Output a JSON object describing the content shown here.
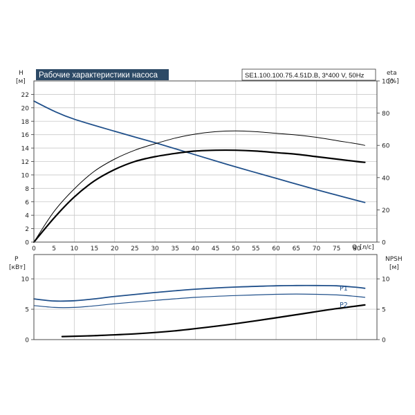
{
  "header": {
    "title": "Рабочие характеристики насоса",
    "model": "SE1.100.100.75.4.51D.B, 3*400 V, 50Hz"
  },
  "colors": {
    "blue": "#1f4f8a",
    "black": "#000000",
    "title_bg": "#2d4a66",
    "grid": "#c8c8c8"
  },
  "chart_data": [
    {
      "type": "line",
      "axes": {
        "y_left": {
          "label": "H",
          "unit": "[м]",
          "ticks": [
            "0",
            "2",
            "4",
            "6",
            "8",
            "10",
            "12",
            "14",
            "16",
            "18",
            "20",
            "22"
          ],
          "ylim": [
            0,
            24
          ]
        },
        "y_right": {
          "label": "eta",
          "unit": "[%]",
          "ticks": [
            "0",
            "20",
            "40",
            "60",
            "80",
            "100"
          ],
          "ylim": [
            0,
            100
          ]
        },
        "x": {
          "label": "Q",
          "unit": "[л/с]",
          "ticks": [
            "0",
            "5",
            "10",
            "15",
            "20",
            "25",
            "30",
            "35",
            "40",
            "45",
            "50",
            "55",
            "60",
            "65",
            "70",
            "75",
            "80"
          ],
          "xlim": [
            0,
            85
          ]
        }
      },
      "grid": true,
      "series": [
        {
          "id": "H",
          "axis": "left",
          "color": "#1f4f8a",
          "width": 1.8,
          "x": [
            0,
            5,
            10,
            20,
            30,
            40,
            50,
            60,
            70,
            75,
            80,
            82
          ],
          "y": [
            21.0,
            19.5,
            18.3,
            16.5,
            14.8,
            13.0,
            11.2,
            9.5,
            7.8,
            7.0,
            6.2,
            5.9
          ]
        },
        {
          "id": "eta_thin",
          "axis": "right",
          "color": "#000000",
          "width": 1.0,
          "x": [
            0,
            5,
            10,
            15,
            20,
            25,
            30,
            35,
            40,
            45,
            50,
            55,
            60,
            65,
            70,
            75,
            80,
            82
          ],
          "y": [
            0,
            19,
            33,
            44,
            51.5,
            57,
            61,
            64.5,
            67,
            68.5,
            69,
            68.5,
            67.5,
            66.5,
            65,
            63,
            61,
            60
          ]
        },
        {
          "id": "eta_thick",
          "axis": "right",
          "color": "#000000",
          "width": 2.2,
          "x": [
            0,
            5,
            10,
            15,
            20,
            25,
            30,
            35,
            40,
            45,
            50,
            55,
            60,
            65,
            70,
            75,
            80,
            82
          ],
          "y": [
            0,
            15,
            28,
            38,
            45,
            50,
            53,
            55,
            56.5,
            57,
            57,
            56.5,
            55.5,
            54.5,
            53,
            51.5,
            50,
            49.5
          ]
        }
      ]
    },
    {
      "type": "line",
      "axes": {
        "y_left": {
          "label": "P",
          "unit": "[кВт]",
          "ticks": [
            "0",
            "5",
            "10"
          ],
          "ylim": [
            0,
            14
          ]
        },
        "y_right": {
          "label": "NPSH",
          "unit": "[м]",
          "ticks": [
            "0",
            "5",
            "10"
          ],
          "ylim": [
            0,
            14
          ]
        },
        "x": {
          "xlim": [
            0,
            85
          ]
        }
      },
      "grid": true,
      "series": [
        {
          "id": "P1",
          "name": "P1",
          "axis": "left",
          "color": "#1f4f8a",
          "width": 1.8,
          "x": [
            0,
            5,
            10,
            15,
            20,
            30,
            40,
            50,
            60,
            65,
            70,
            75,
            80,
            82
          ],
          "y": [
            6.7,
            6.35,
            6.4,
            6.7,
            7.1,
            7.75,
            8.3,
            8.65,
            8.85,
            8.9,
            8.9,
            8.85,
            8.6,
            8.45
          ]
        },
        {
          "id": "P2",
          "name": "P2",
          "axis": "left",
          "color": "#1f4f8a",
          "width": 1.2,
          "x": [
            0,
            5,
            10,
            15,
            20,
            30,
            40,
            50,
            60,
            65,
            70,
            75,
            80,
            82
          ],
          "y": [
            5.6,
            5.3,
            5.3,
            5.55,
            5.9,
            6.45,
            6.95,
            7.25,
            7.45,
            7.5,
            7.45,
            7.35,
            7.1,
            6.95
          ]
        },
        {
          "id": "NPSH",
          "axis": "right",
          "color": "#000000",
          "width": 2.2,
          "x": [
            7,
            15,
            25,
            35,
            45,
            55,
            65,
            75,
            82
          ],
          "y": [
            0.5,
            0.65,
            0.95,
            1.45,
            2.2,
            3.1,
            4.1,
            5.1,
            5.7
          ]
        }
      ]
    }
  ]
}
